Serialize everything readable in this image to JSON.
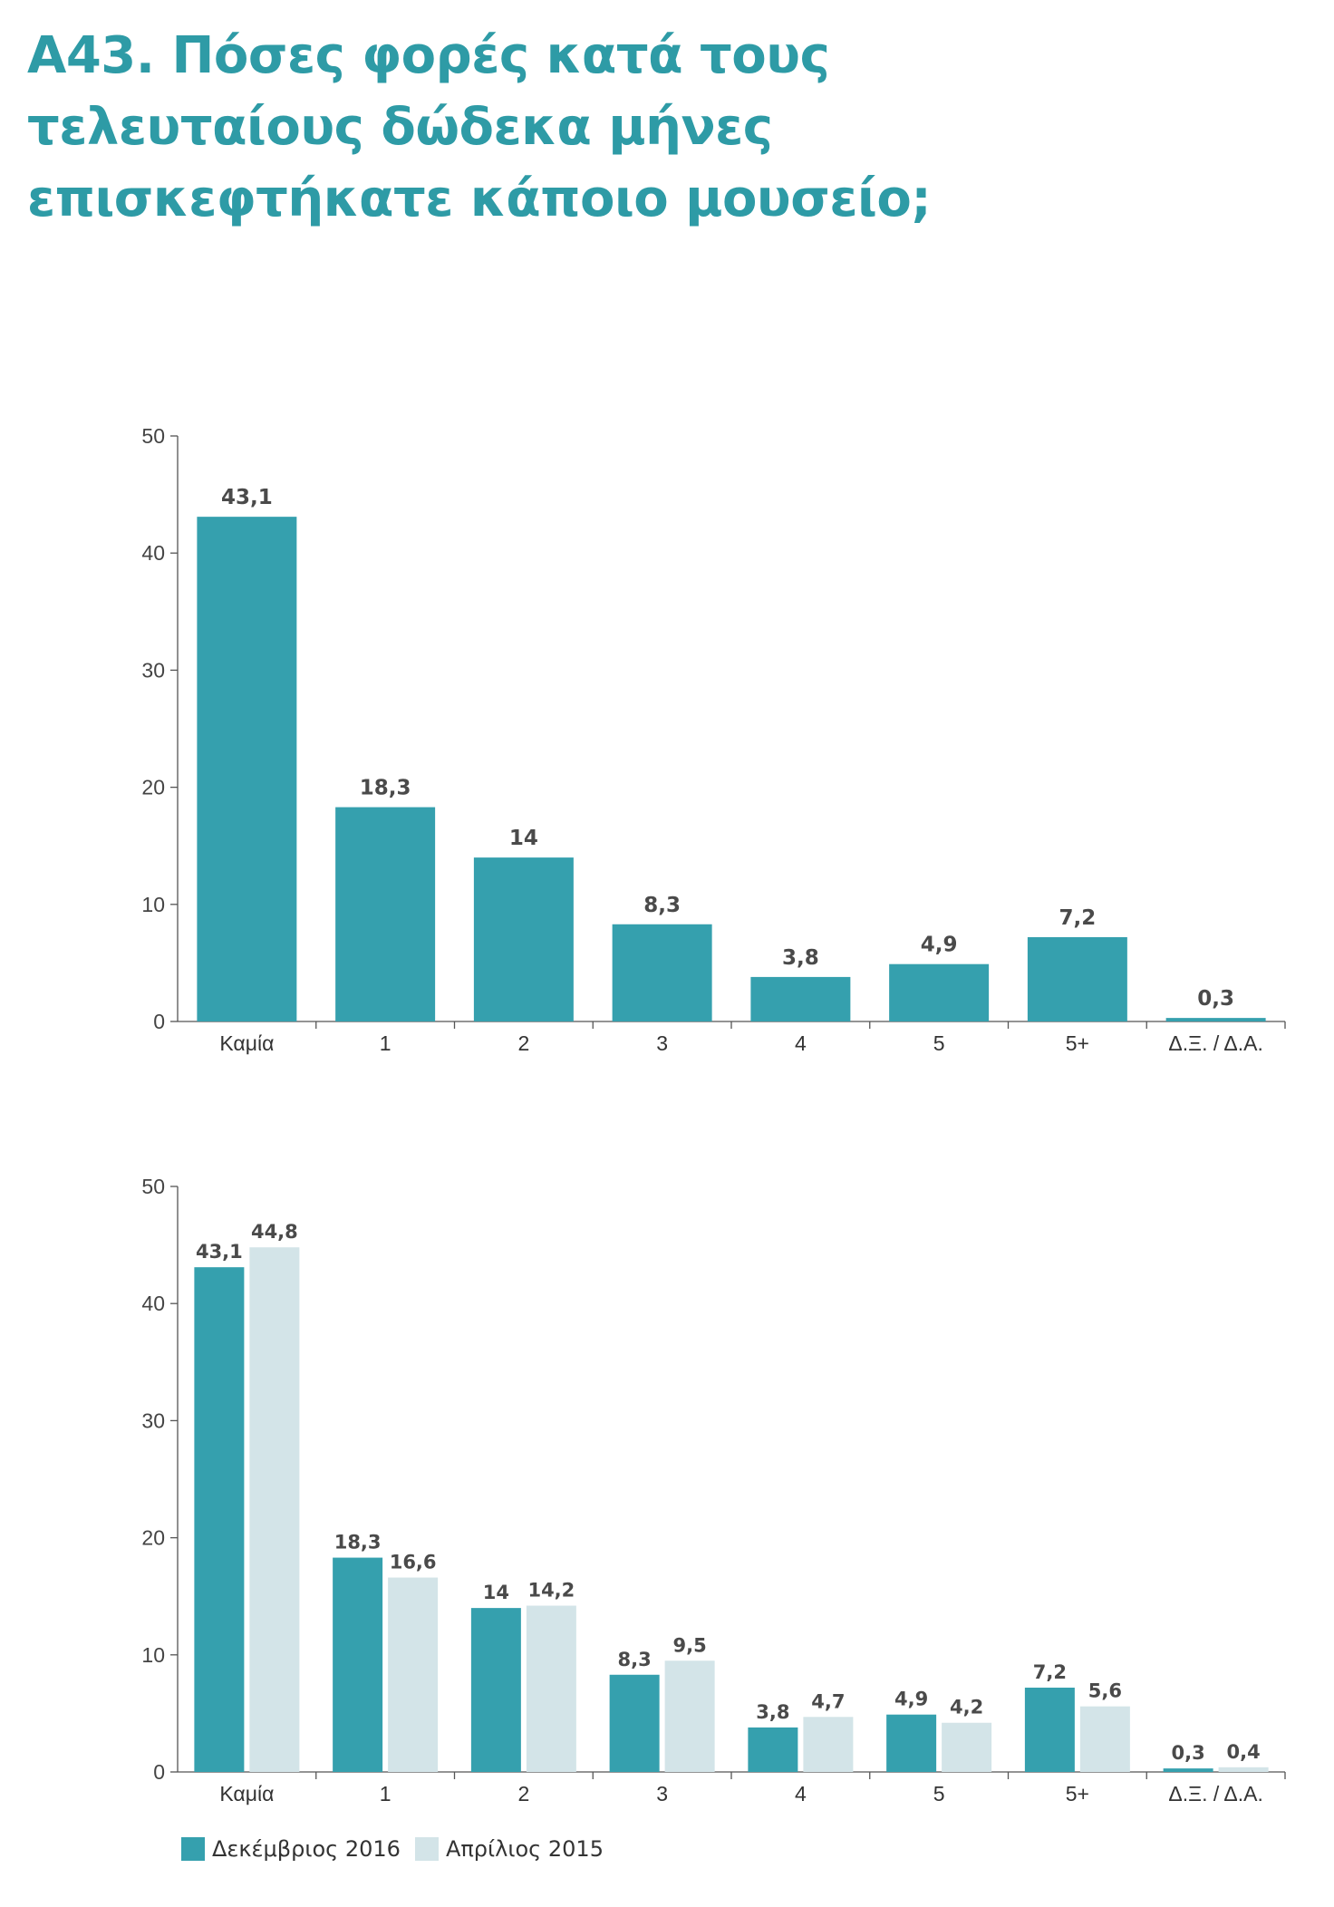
{
  "title_lines": [
    "Α43. Πόσες φορές κατά τους",
    "τελευταίους δώδεκα μήνες",
    "επισκεφτήκατε κάποιο μουσείο;"
  ],
  "colors": {
    "title": "#2e9ba6",
    "dec2016": "#35a0ae",
    "apr2015": "#d3e4e8"
  },
  "chart_data": [
    {
      "type": "bar",
      "categories": [
        "Καμία",
        "1",
        "2",
        "3",
        "4",
        "5",
        "5+",
        "Δ.Ξ. / Δ.Α."
      ],
      "values": [
        43.1,
        18.3,
        14,
        8.3,
        3.8,
        4.9,
        7.2,
        0.3
      ],
      "value_labels": [
        "43,1",
        "18,3",
        "14",
        "8,3",
        "3,8",
        "4,9",
        "7,2",
        "0,3"
      ],
      "yticks": [
        "0",
        "10",
        "20",
        "30",
        "40",
        "50"
      ],
      "ylim": [
        0,
        50
      ]
    },
    {
      "type": "bar",
      "categories": [
        "Καμία",
        "1",
        "2",
        "3",
        "4",
        "5",
        "5+",
        "Δ.Ξ. / Δ.Α."
      ],
      "series": [
        {
          "name": "Δεκέμβριος 2016",
          "values": [
            43.1,
            18.3,
            14,
            8.3,
            3.8,
            4.9,
            7.2,
            0.3
          ],
          "value_labels": [
            "43,1",
            "18,3",
            "14",
            "8,3",
            "3,8",
            "4,9",
            "7,2",
            "0,3"
          ]
        },
        {
          "name": "Απρίλιος 2015",
          "values": [
            44.8,
            16.6,
            14.2,
            9.5,
            4.7,
            4.2,
            5.6,
            0.4
          ],
          "value_labels": [
            "44,8",
            "16,6",
            "14,2",
            "9,5",
            "4,7",
            "4,2",
            "5,6",
            "0,4"
          ]
        }
      ],
      "yticks": [
        "0",
        "10",
        "20",
        "30",
        "40",
        "50"
      ],
      "ylim": [
        0,
        50
      ],
      "legend": "bottom-left"
    }
  ]
}
